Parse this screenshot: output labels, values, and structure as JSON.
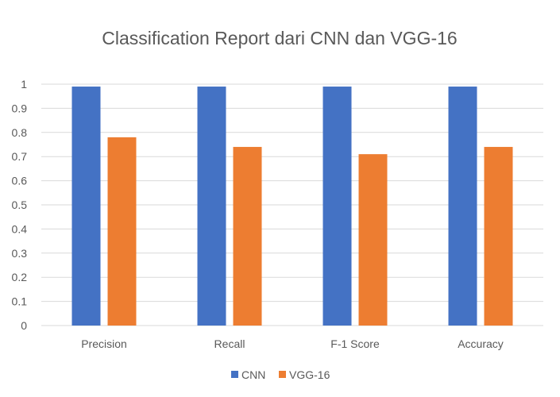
{
  "chart_data": {
    "type": "bar",
    "title": "Classification Report dari CNN dan VGG-16",
    "categories": [
      "Precision",
      "Recall",
      "F-1 Score",
      "Accuracy"
    ],
    "series": [
      {
        "name": "CNN",
        "values": [
          0.99,
          0.99,
          0.99,
          0.99
        ],
        "color": "#4472c4"
      },
      {
        "name": "VGG-16",
        "values": [
          0.78,
          0.74,
          0.71,
          0.74
        ],
        "color": "#ed7d31"
      }
    ],
    "yticks": [
      "0",
      "0.1",
      "0.2",
      "0.3",
      "0.4",
      "0.5",
      "0.6",
      "0.7",
      "0.8",
      "0.9",
      "1"
    ],
    "ylim": [
      0,
      1
    ],
    "grid": true,
    "legend_position": "bottom"
  }
}
